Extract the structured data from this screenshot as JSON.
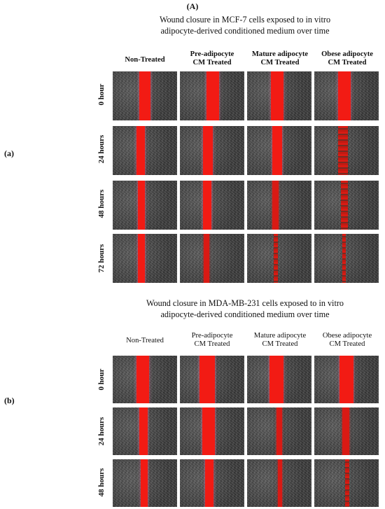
{
  "figure": {
    "panel_label_top": "(A)",
    "side_labels": [
      "(a)",
      "(b)"
    ],
    "panels": [
      {
        "title_line1": "Wound closure in MCF-7 cells exposed to in vitro",
        "title_line2": "adipocyte-derived conditioned medium over time",
        "columns": [
          {
            "line1": "Non-Treated",
            "line2": ""
          },
          {
            "line1": "Pre-adipocyte",
            "line2": "CM Treated"
          },
          {
            "line1": "Mature adipocyte",
            "line2": "CM Treated"
          },
          {
            "line1": "Obese adipocyte",
            "line2": "CM Treated"
          }
        ],
        "rows": [
          "0 hour",
          "24 hours",
          "48 hours",
          "72 hours"
        ]
      },
      {
        "title_line1": "Wound closure in MDA-MB-231 cells exposed to in vitro",
        "title_line2": "adipocyte-derived conditioned medium over time",
        "columns": [
          {
            "line1": "Non-Treated",
            "line2": ""
          },
          {
            "line1": "Pre-adipocyte",
            "line2": "CM Treated"
          },
          {
            "line1": "Mature adipocyte",
            "line2": "CM Treated"
          },
          {
            "line1": "Obese adipocyte",
            "line2": "CM Treated"
          }
        ],
        "rows": [
          "0 hour",
          "24 hours",
          "48 hours"
        ]
      }
    ]
  },
  "colors": {
    "wound_marker": "#f21b14",
    "cell_background": "#4a4a4a"
  }
}
